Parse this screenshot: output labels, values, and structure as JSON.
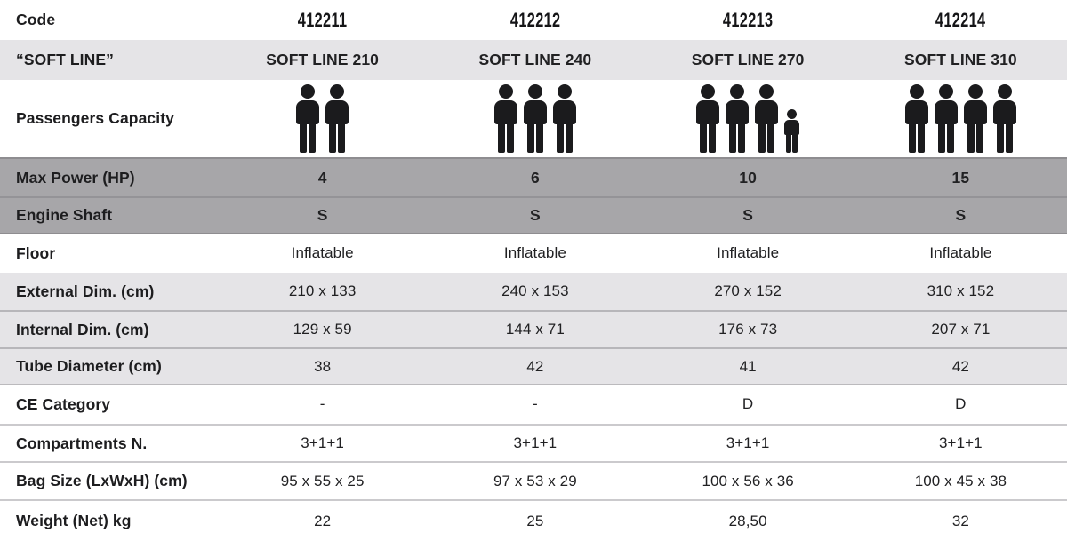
{
  "colors": {
    "row_light_gray": "#e5e4e7",
    "row_mid_gray": "#a7a6a9",
    "text_black": "#1d1d1f",
    "icon_black": "#1b1b1d"
  },
  "rows": {
    "code": {
      "label": "Code",
      "values": [
        "412211",
        "412212",
        "412213",
        "412214"
      ]
    },
    "softline": {
      "label": "“SOFT LINE”",
      "values": [
        "SOFT LINE 210",
        "SOFT LINE 240",
        "SOFT LINE 270",
        "SOFT LINE 310"
      ]
    },
    "passengers": {
      "label": "Passengers Capacity",
      "capacity": [
        {
          "adults": 2,
          "children": 0
        },
        {
          "adults": 3,
          "children": 0
        },
        {
          "adults": 3,
          "children": 1
        },
        {
          "adults": 4,
          "children": 0
        }
      ]
    },
    "max_power": {
      "label": "Max Power (HP)",
      "values": [
        "4",
        "6",
        "10",
        "15"
      ]
    },
    "engine_shaft": {
      "label": "Engine Shaft",
      "values": [
        "S",
        "S",
        "S",
        "S"
      ]
    },
    "floor": {
      "label": "Floor",
      "values": [
        "Inflatable",
        "Inflatable",
        "Inflatable",
        "Inflatable"
      ]
    },
    "external_dim": {
      "label": "External Dim. (cm)",
      "values": [
        "210 x 133",
        "240 x 153",
        "270 x 152",
        "310 x 152"
      ]
    },
    "internal_dim": {
      "label": "Internal Dim. (cm)",
      "values": [
        "129 x 59",
        "144 x 71",
        "176 x 73",
        "207 x 71"
      ]
    },
    "tube_diameter": {
      "label": "Tube Diameter (cm)",
      "values": [
        "38",
        "42",
        "41",
        "42"
      ]
    },
    "ce_category": {
      "label": "CE Category",
      "values": [
        "-",
        "-",
        "D",
        "D"
      ]
    },
    "compartments": {
      "label": "Compartments N.",
      "values": [
        "3+1+1",
        "3+1+1",
        "3+1+1",
        "3+1+1"
      ]
    },
    "bag_size": {
      "label": "Bag Size (LxWxH) (cm)",
      "values": [
        "95 x 55 x 25",
        "97 x 53 x 29",
        "100 x 56 x 36",
        "100 x 45 x 38"
      ]
    },
    "weight": {
      "label": "Weight (Net) kg",
      "values": [
        "22",
        "25",
        "28,50",
        "32"
      ]
    }
  }
}
